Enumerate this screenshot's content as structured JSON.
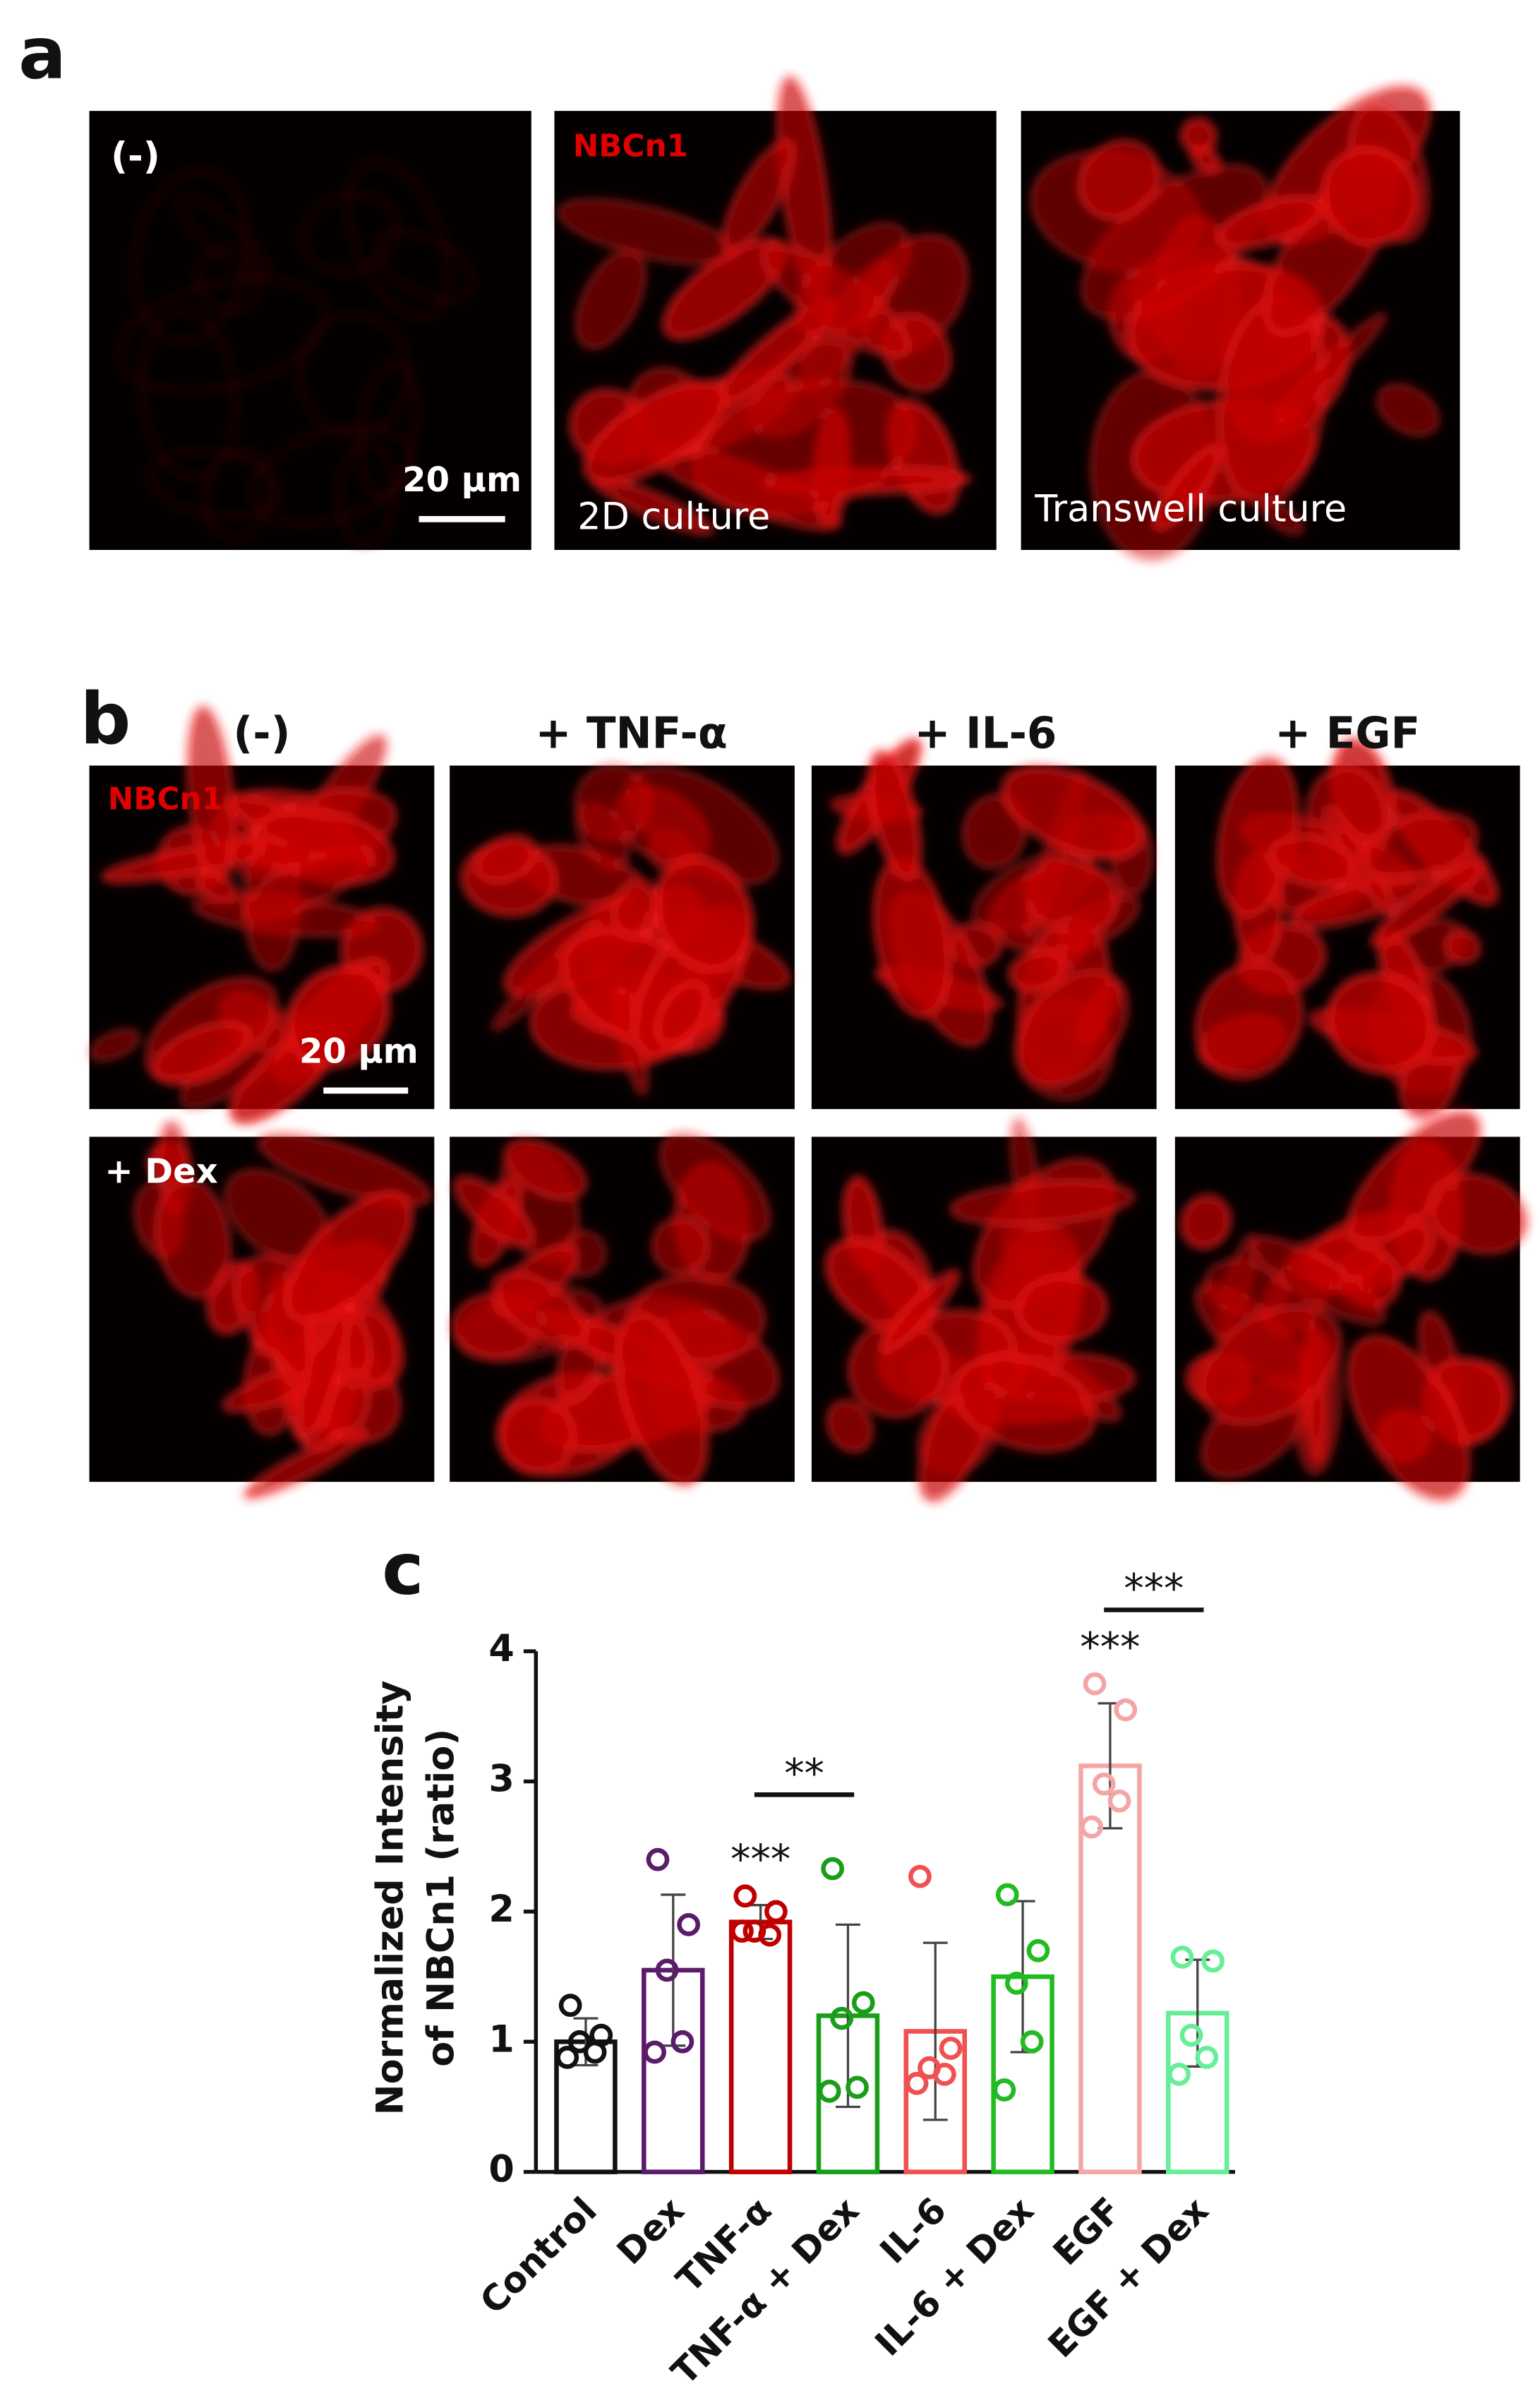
{
  "panel_a": {
    "label": "a",
    "control": "(-)",
    "scale": "20 µm",
    "stain": "NBCn1",
    "culture_2d": "2D culture",
    "culture_transwell": "Transwell culture"
  },
  "panel_b": {
    "label": "b",
    "columns": [
      "(-)",
      "+ TNF-α",
      "+ IL-6",
      "+ EGF"
    ],
    "stain": "NBCn1",
    "scale": "20 µm",
    "row2": "+ Dex"
  },
  "chart_data": {
    "type": "bar",
    "label": "c",
    "ylabel": [
      "Normalized Intensity",
      "of NBCn1 (ratio)"
    ],
    "categories": [
      "Control",
      "Dex",
      "TNF-α",
      "TNF-α + Dex",
      "IL-6",
      "IL-6 + Dex",
      "EGF",
      "EGF + Dex"
    ],
    "values": [
      1.0,
      1.55,
      1.92,
      1.2,
      1.08,
      1.5,
      3.12,
      1.22
    ],
    "errors": [
      0.18,
      0.58,
      0.13,
      0.7,
      0.68,
      0.58,
      0.48,
      0.41
    ],
    "points": [
      [
        1.28,
        1.05,
        1.0,
        0.92,
        0.88
      ],
      [
        2.4,
        1.9,
        1.55,
        1.0,
        0.92
      ],
      [
        2.12,
        2.0,
        1.85,
        1.82,
        1.85
      ],
      [
        2.33,
        1.3,
        1.18,
        0.65,
        0.62
      ],
      [
        2.27,
        0.95,
        0.8,
        0.75,
        0.68
      ],
      [
        2.13,
        1.7,
        1.45,
        1.0,
        0.63
      ],
      [
        3.75,
        3.55,
        2.98,
        2.85,
        2.65
      ],
      [
        1.65,
        1.62,
        1.05,
        0.88,
        0.75
      ]
    ],
    "colors": [
      "#111111",
      "#5c1a6b",
      "#c00000",
      "#1a9e1a",
      "#f05050",
      "#22bb22",
      "#f4a6a6",
      "#66ee99"
    ],
    "ylim": [
      0,
      4
    ],
    "yticks": [
      0,
      1,
      2,
      3,
      4
    ],
    "annotations": [
      {
        "text": "***",
        "category": "TNF-α"
      },
      {
        "text": "**",
        "bracket": [
          "TNF-α",
          "TNF-α + Dex"
        ]
      },
      {
        "text": "***",
        "category": "EGF"
      },
      {
        "text": "***",
        "bracket": [
          "EGF",
          "EGF + Dex"
        ]
      }
    ]
  }
}
